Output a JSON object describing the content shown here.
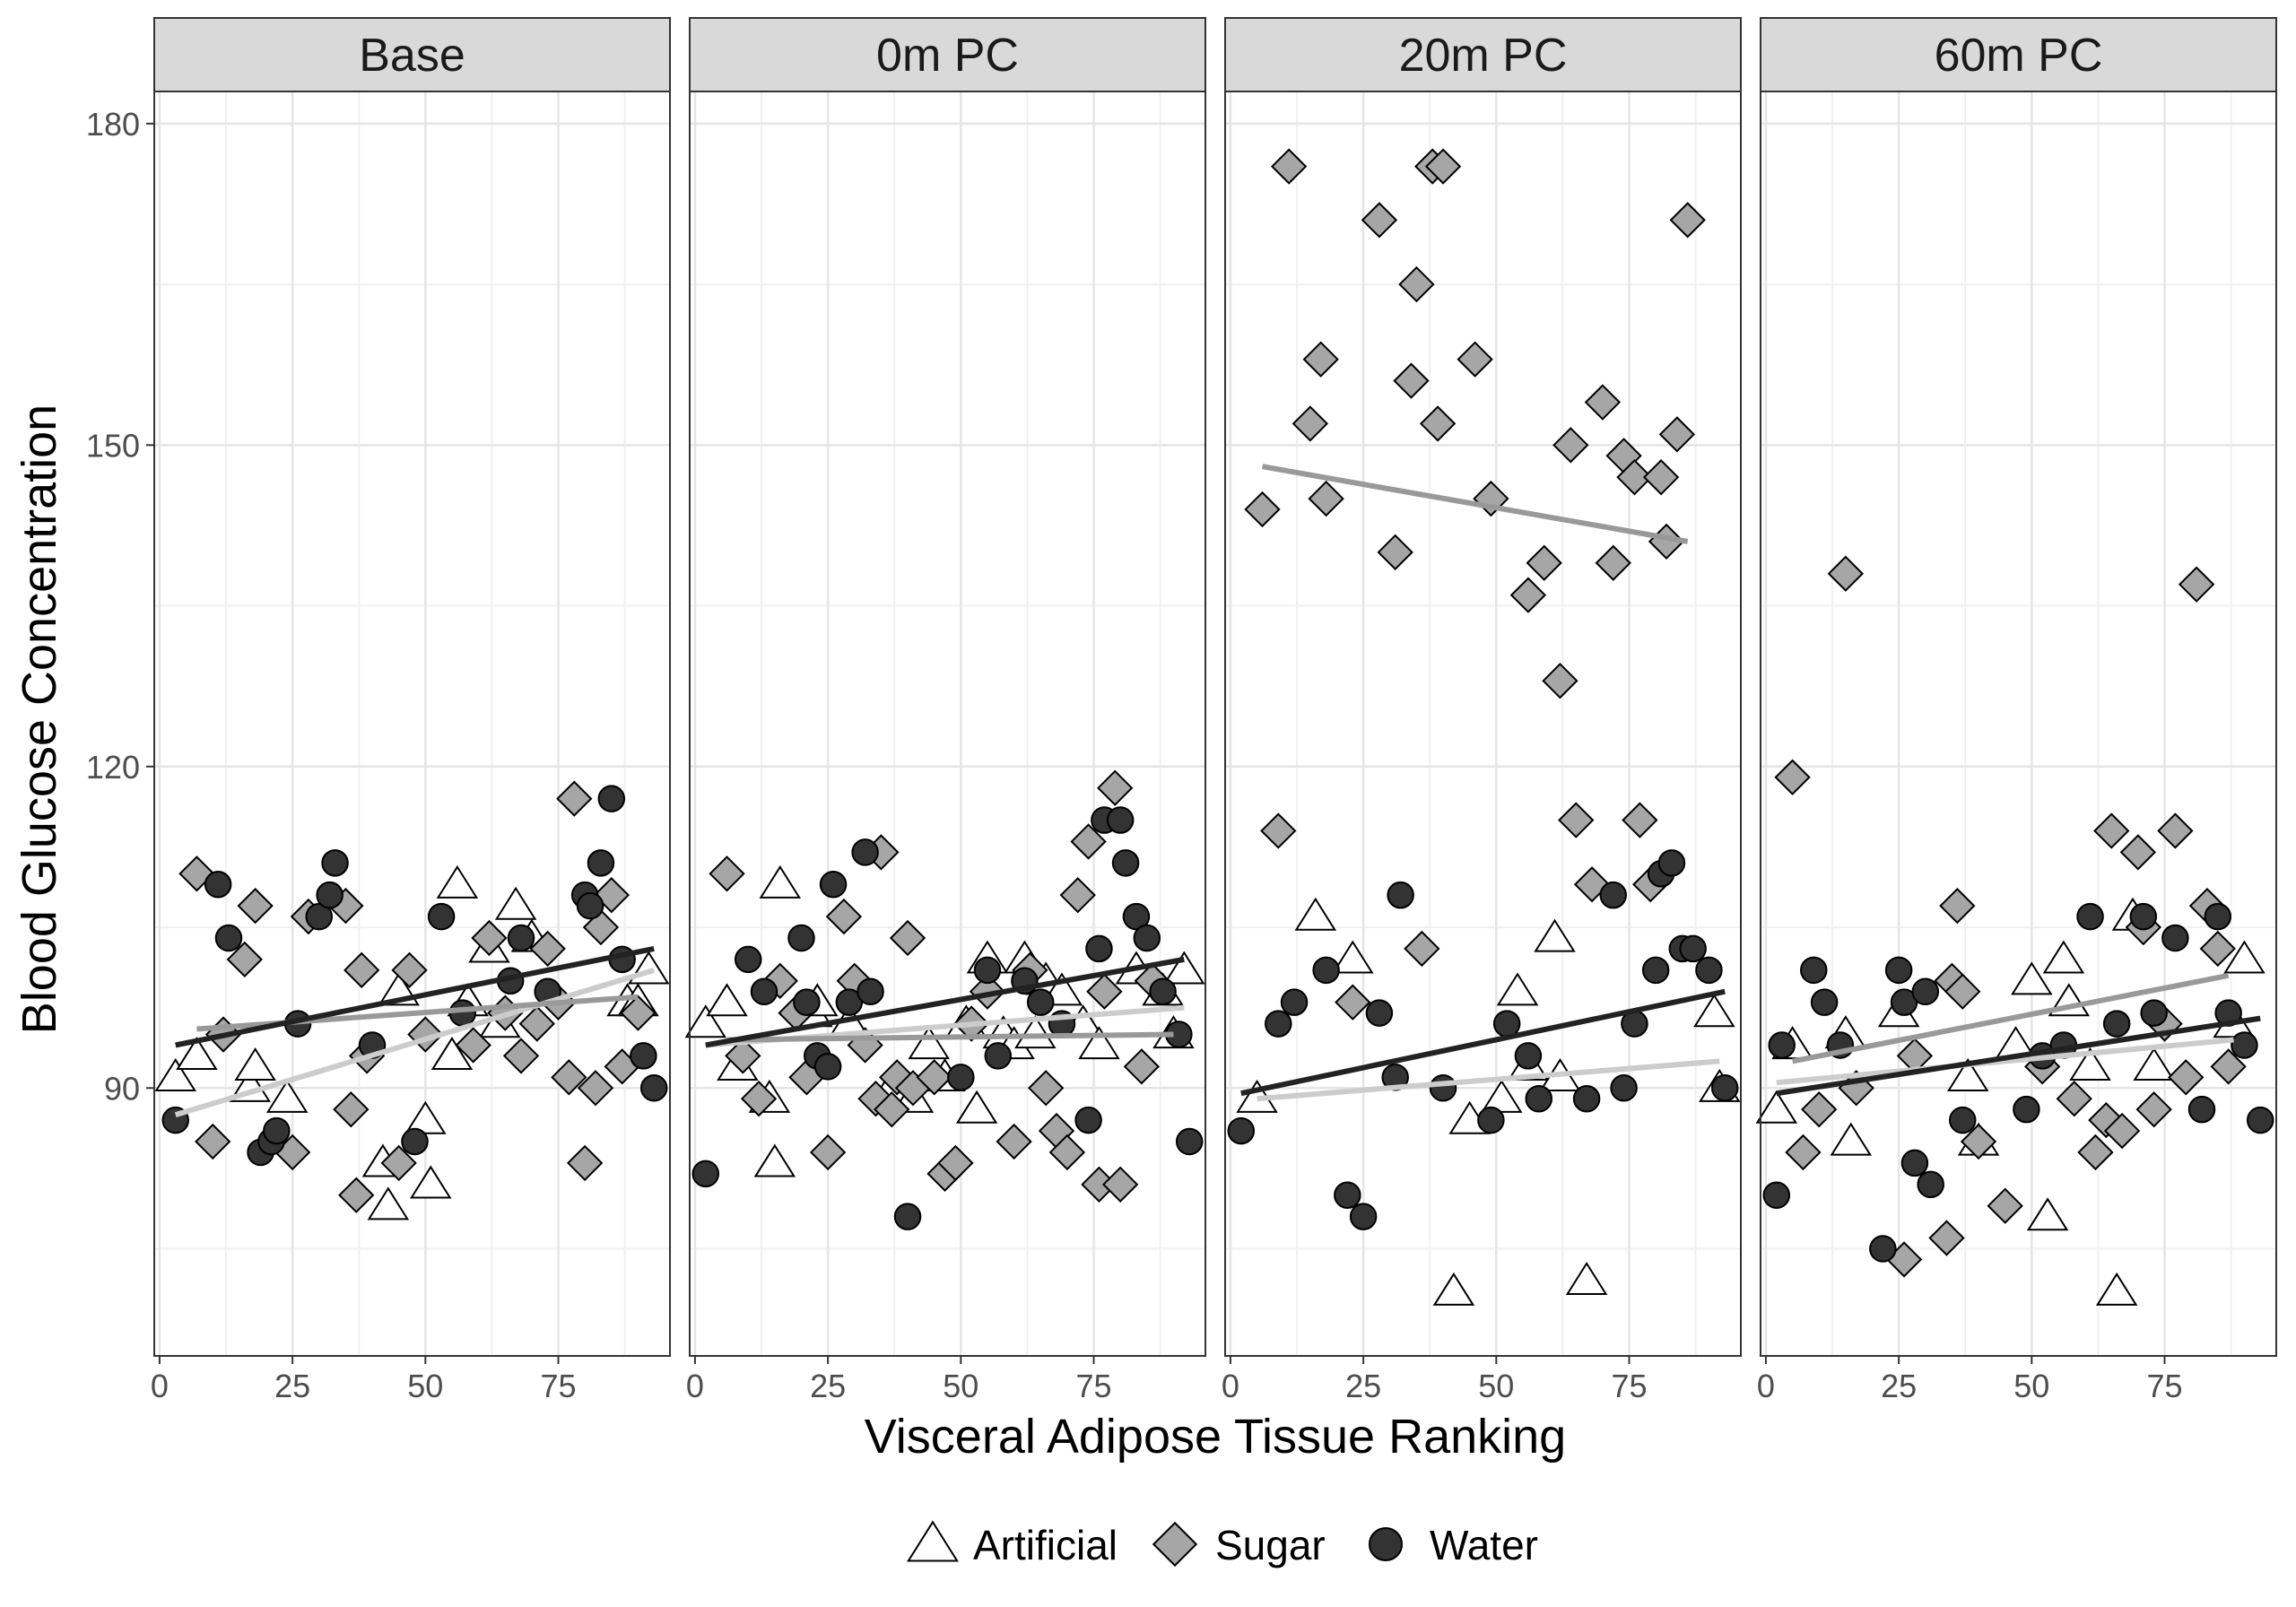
{
  "chart_data": {
    "type": "scatter",
    "facets": [
      "Base",
      "0m PC",
      "20m PC",
      "60m PC"
    ],
    "xlabel": "Visceral Adipose Tissue Ranking",
    "ylabel": "Blood Glucose Concentration",
    "xlim": [
      -1,
      96
    ],
    "ylim": [
      65,
      183
    ],
    "x_ticks": [
      0,
      25,
      50,
      75
    ],
    "y_ticks": [
      90,
      120,
      150,
      180
    ],
    "grid": true,
    "legend_position": "bottom",
    "legend": [
      {
        "name": "Artificial",
        "shape": "triangle",
        "fill": "#ffffff"
      },
      {
        "name": "Sugar",
        "shape": "diamond",
        "fill": "#a6a6a6"
      },
      {
        "name": "Water",
        "shape": "circle",
        "fill": "#333333"
      }
    ],
    "trend_colors": {
      "Artificial": "#cccccc",
      "Sugar": "#999999",
      "Water": "#222222"
    },
    "panels": [
      {
        "facet": "Base",
        "series": [
          {
            "name": "Artificial",
            "x": [
              3,
              7,
              17,
              18,
              24,
              42,
              43,
              45,
              50,
              51,
              55,
              56,
              58,
              62,
              64,
              67,
              70,
              88,
              90,
              92
            ],
            "y": [
              91,
              93,
              90,
              92,
              89,
              83,
              79,
              99,
              87,
              81,
              93,
              109,
              98,
              103,
              96,
              107,
              104,
              98,
              98,
              101
            ]
          },
          {
            "name": "Sugar",
            "x": [
              7,
              10,
              12,
              16,
              18,
              25,
              28,
              35,
              36,
              37,
              38,
              39,
              45,
              47,
              50,
              59,
              62,
              65,
              68,
              71,
              73,
              75,
              77,
              78,
              80,
              82,
              83,
              85,
              87,
              90
            ],
            "y": [
              110,
              85,
              95,
              102,
              107,
              84,
              106,
              107,
              88,
              80,
              101,
              93,
              83,
              101,
              95,
              94,
              104,
              97,
              93,
              96,
              103,
              98,
              91,
              117,
              83,
              90,
              105,
              108,
              92,
              97
            ]
          },
          {
            "name": "Water",
            "x": [
              3,
              11,
              13,
              19,
              21,
              22,
              26,
              30,
              32,
              33,
              40,
              48,
              53,
              57,
              66,
              68,
              73,
              80,
              81,
              83,
              85,
              87,
              91,
              93
            ],
            "y": [
              87,
              109,
              104,
              84,
              85,
              86,
              96,
              106,
              108,
              111,
              94,
              85,
              106,
              97,
              100,
              104,
              99,
              108,
              107,
              111,
              117,
              102,
              93,
              90
            ]
          }
        ],
        "trends": [
          {
            "name": "Artificial",
            "x": [
              3,
              93
            ],
            "y": [
              87.5,
              101
            ]
          },
          {
            "name": "Sugar",
            "x": [
              7,
              90
            ],
            "y": [
              95.5,
              98.5
            ]
          },
          {
            "name": "Water",
            "x": [
              3,
              93
            ],
            "y": [
              94,
              103
            ]
          }
        ]
      },
      {
        "facet": "0m PC",
        "series": [
          {
            "name": "Artificial",
            "x": [
              2,
              6,
              8,
              14,
              15,
              16,
              22,
              23,
              29,
              37,
              41,
              44,
              47,
              51,
              53,
              55,
              58,
              60,
              62,
              64,
              66,
              69,
              73,
              76,
              83,
              88,
              90,
              92
            ],
            "y": [
              96,
              98,
              92,
              89,
              83,
              109,
              97,
              98,
              96,
              90,
              89,
              94,
              91,
              96,
              88,
              102,
              95,
              94,
              102,
              95,
              100,
              99,
              96,
              94,
              101,
              99,
              95,
              101
            ]
          },
          {
            "name": "Sugar",
            "x": [
              6,
              9,
              12,
              16,
              19,
              21,
              25,
              28,
              30,
              32,
              34,
              35,
              37,
              38,
              40,
              41,
              45,
              47,
              49,
              52,
              55,
              60,
              63,
              66,
              68,
              70,
              72,
              74,
              76,
              77,
              79,
              80,
              84,
              86
            ],
            "y": [
              110,
              93,
              89,
              100,
              97,
              91,
              84,
              106,
              100,
              94,
              89,
              112,
              88,
              91,
              104,
              90,
              91,
              82,
              83,
              96,
              99,
              85,
              101,
              90,
              86,
              84,
              108,
              113,
              81,
              99,
              118,
              81,
              92,
              100
            ]
          },
          {
            "name": "Water",
            "x": [
              2,
              10,
              13,
              20,
              21,
              23,
              25,
              26,
              29,
              32,
              33,
              40,
              50,
              55,
              57,
              62,
              65,
              69,
              74,
              76,
              77,
              80,
              81,
              83,
              85,
              88,
              91,
              93
            ],
            "y": [
              82,
              102,
              99,
              104,
              98,
              93,
              92,
              109,
              98,
              112,
              99,
              78,
              91,
              101,
              93,
              100,
              98,
              96,
              87,
              103,
              115,
              115,
              111,
              106,
              104,
              99,
              95,
              85
            ]
          }
        ],
        "trends": [
          {
            "name": "Artificial",
            "x": [
              2,
              92
            ],
            "y": [
              94,
              97.5
            ]
          },
          {
            "name": "Sugar",
            "x": [
              6,
              90
            ],
            "y": [
              94.5,
              95
            ]
          },
          {
            "name": "Water",
            "x": [
              2,
              92
            ],
            "y": [
              94,
              102
            ]
          }
        ]
      },
      {
        "facet": "20m PC",
        "series": [
          {
            "name": "Artificial",
            "x": [
              5,
              16,
              23,
              42,
              45,
              51,
              54,
              56,
              61,
              62,
              67,
              91,
              92
            ],
            "y": [
              89,
              106,
              102,
              71,
              87,
              89,
              99,
              92,
              104,
              91,
              72,
              97,
              90
            ]
          },
          {
            "name": "Sugar",
            "x": [
              6,
              9,
              11,
              15,
              17,
              18,
              23,
              28,
              31,
              34,
              35,
              36,
              38,
              39,
              40,
              46,
              49,
              56,
              59,
              62,
              64,
              65,
              68,
              70,
              72,
              74,
              76,
              77,
              79,
              81,
              82,
              84,
              86
            ],
            "y": [
              144,
              114,
              176,
              152,
              158,
              145,
              98,
              171,
              140,
              156,
              165,
              103,
              176,
              152,
              176,
              158,
              145,
              136,
              139,
              128,
              150,
              115,
              109,
              154,
              139,
              149,
              147,
              115,
              109,
              147,
              141,
              151,
              171
            ]
          },
          {
            "name": "Water",
            "x": [
              2,
              9,
              12,
              18,
              22,
              25,
              28,
              31,
              32,
              40,
              49,
              52,
              56,
              58,
              67,
              72,
              74,
              76,
              80,
              81,
              83,
              85,
              87,
              90,
              93
            ],
            "y": [
              86,
              96,
              98,
              101,
              80,
              78,
              97,
              91,
              108,
              90,
              87,
              96,
              93,
              89,
              89,
              108,
              90,
              96,
              101,
              110,
              111,
              103,
              103,
              101,
              90
            ]
          }
        ],
        "trends": [
          {
            "name": "Artificial",
            "x": [
              5,
              92
            ],
            "y": [
              89,
              92.5
            ]
          },
          {
            "name": "Sugar",
            "x": [
              6,
              86
            ],
            "y": [
              148,
              141
            ]
          },
          {
            "name": "Water",
            "x": [
              2,
              93
            ],
            "y": [
              89.5,
              99
            ]
          }
        ]
      },
      {
        "facet": "60m PC",
        "series": [
          {
            "name": "Artificial",
            "x": [
              2,
              5,
              15,
              16,
              25,
              38,
              40,
              47,
              50,
              53,
              56,
              57,
              61,
              66,
              69,
              73,
              88,
              90
            ],
            "y": [
              88,
              94,
              95,
              85,
              97,
              91,
              85,
              94,
              100,
              78,
              102,
              98,
              92,
              71,
              106,
              92,
              96,
              102
            ]
          },
          {
            "name": "Sugar",
            "x": [
              5,
              7,
              10,
              15,
              17,
              26,
              28,
              34,
              35,
              36,
              37,
              40,
              45,
              52,
              58,
              62,
              64,
              65,
              67,
              70,
              71,
              73,
              75,
              77,
              79,
              81,
              83,
              85,
              87
            ],
            "y": [
              119,
              84,
              88,
              138,
              90,
              74,
              93,
              76,
              100,
              107,
              99,
              85,
              79,
              92,
              89,
              84,
              87,
              114,
              86,
              112,
              105,
              88,
              96,
              114,
              91,
              137,
              107,
              103,
              92
            ]
          },
          {
            "name": "Water",
            "x": [
              2,
              3,
              9,
              11,
              14,
              22,
              25,
              26,
              28,
              30,
              31,
              37,
              49,
              52,
              56,
              61,
              66,
              71,
              73,
              77,
              82,
              85,
              87,
              90,
              93
            ],
            "y": [
              80,
              94,
              101,
              98,
              94,
              75,
              101,
              98,
              83,
              99,
              81,
              87,
              88,
              93,
              94,
              106,
              96,
              106,
              97,
              104,
              88,
              106,
              97,
              94,
              87
            ]
          }
        ],
        "trends": [
          {
            "name": "Artificial",
            "x": [
              2,
              88
            ],
            "y": [
              90.5,
              94.5
            ]
          },
          {
            "name": "Sugar",
            "x": [
              5,
              87
            ],
            "y": [
              92.5,
              100.5
            ]
          },
          {
            "name": "Water",
            "x": [
              2,
              93
            ],
            "y": [
              89.5,
              96.5
            ]
          }
        ]
      }
    ]
  }
}
